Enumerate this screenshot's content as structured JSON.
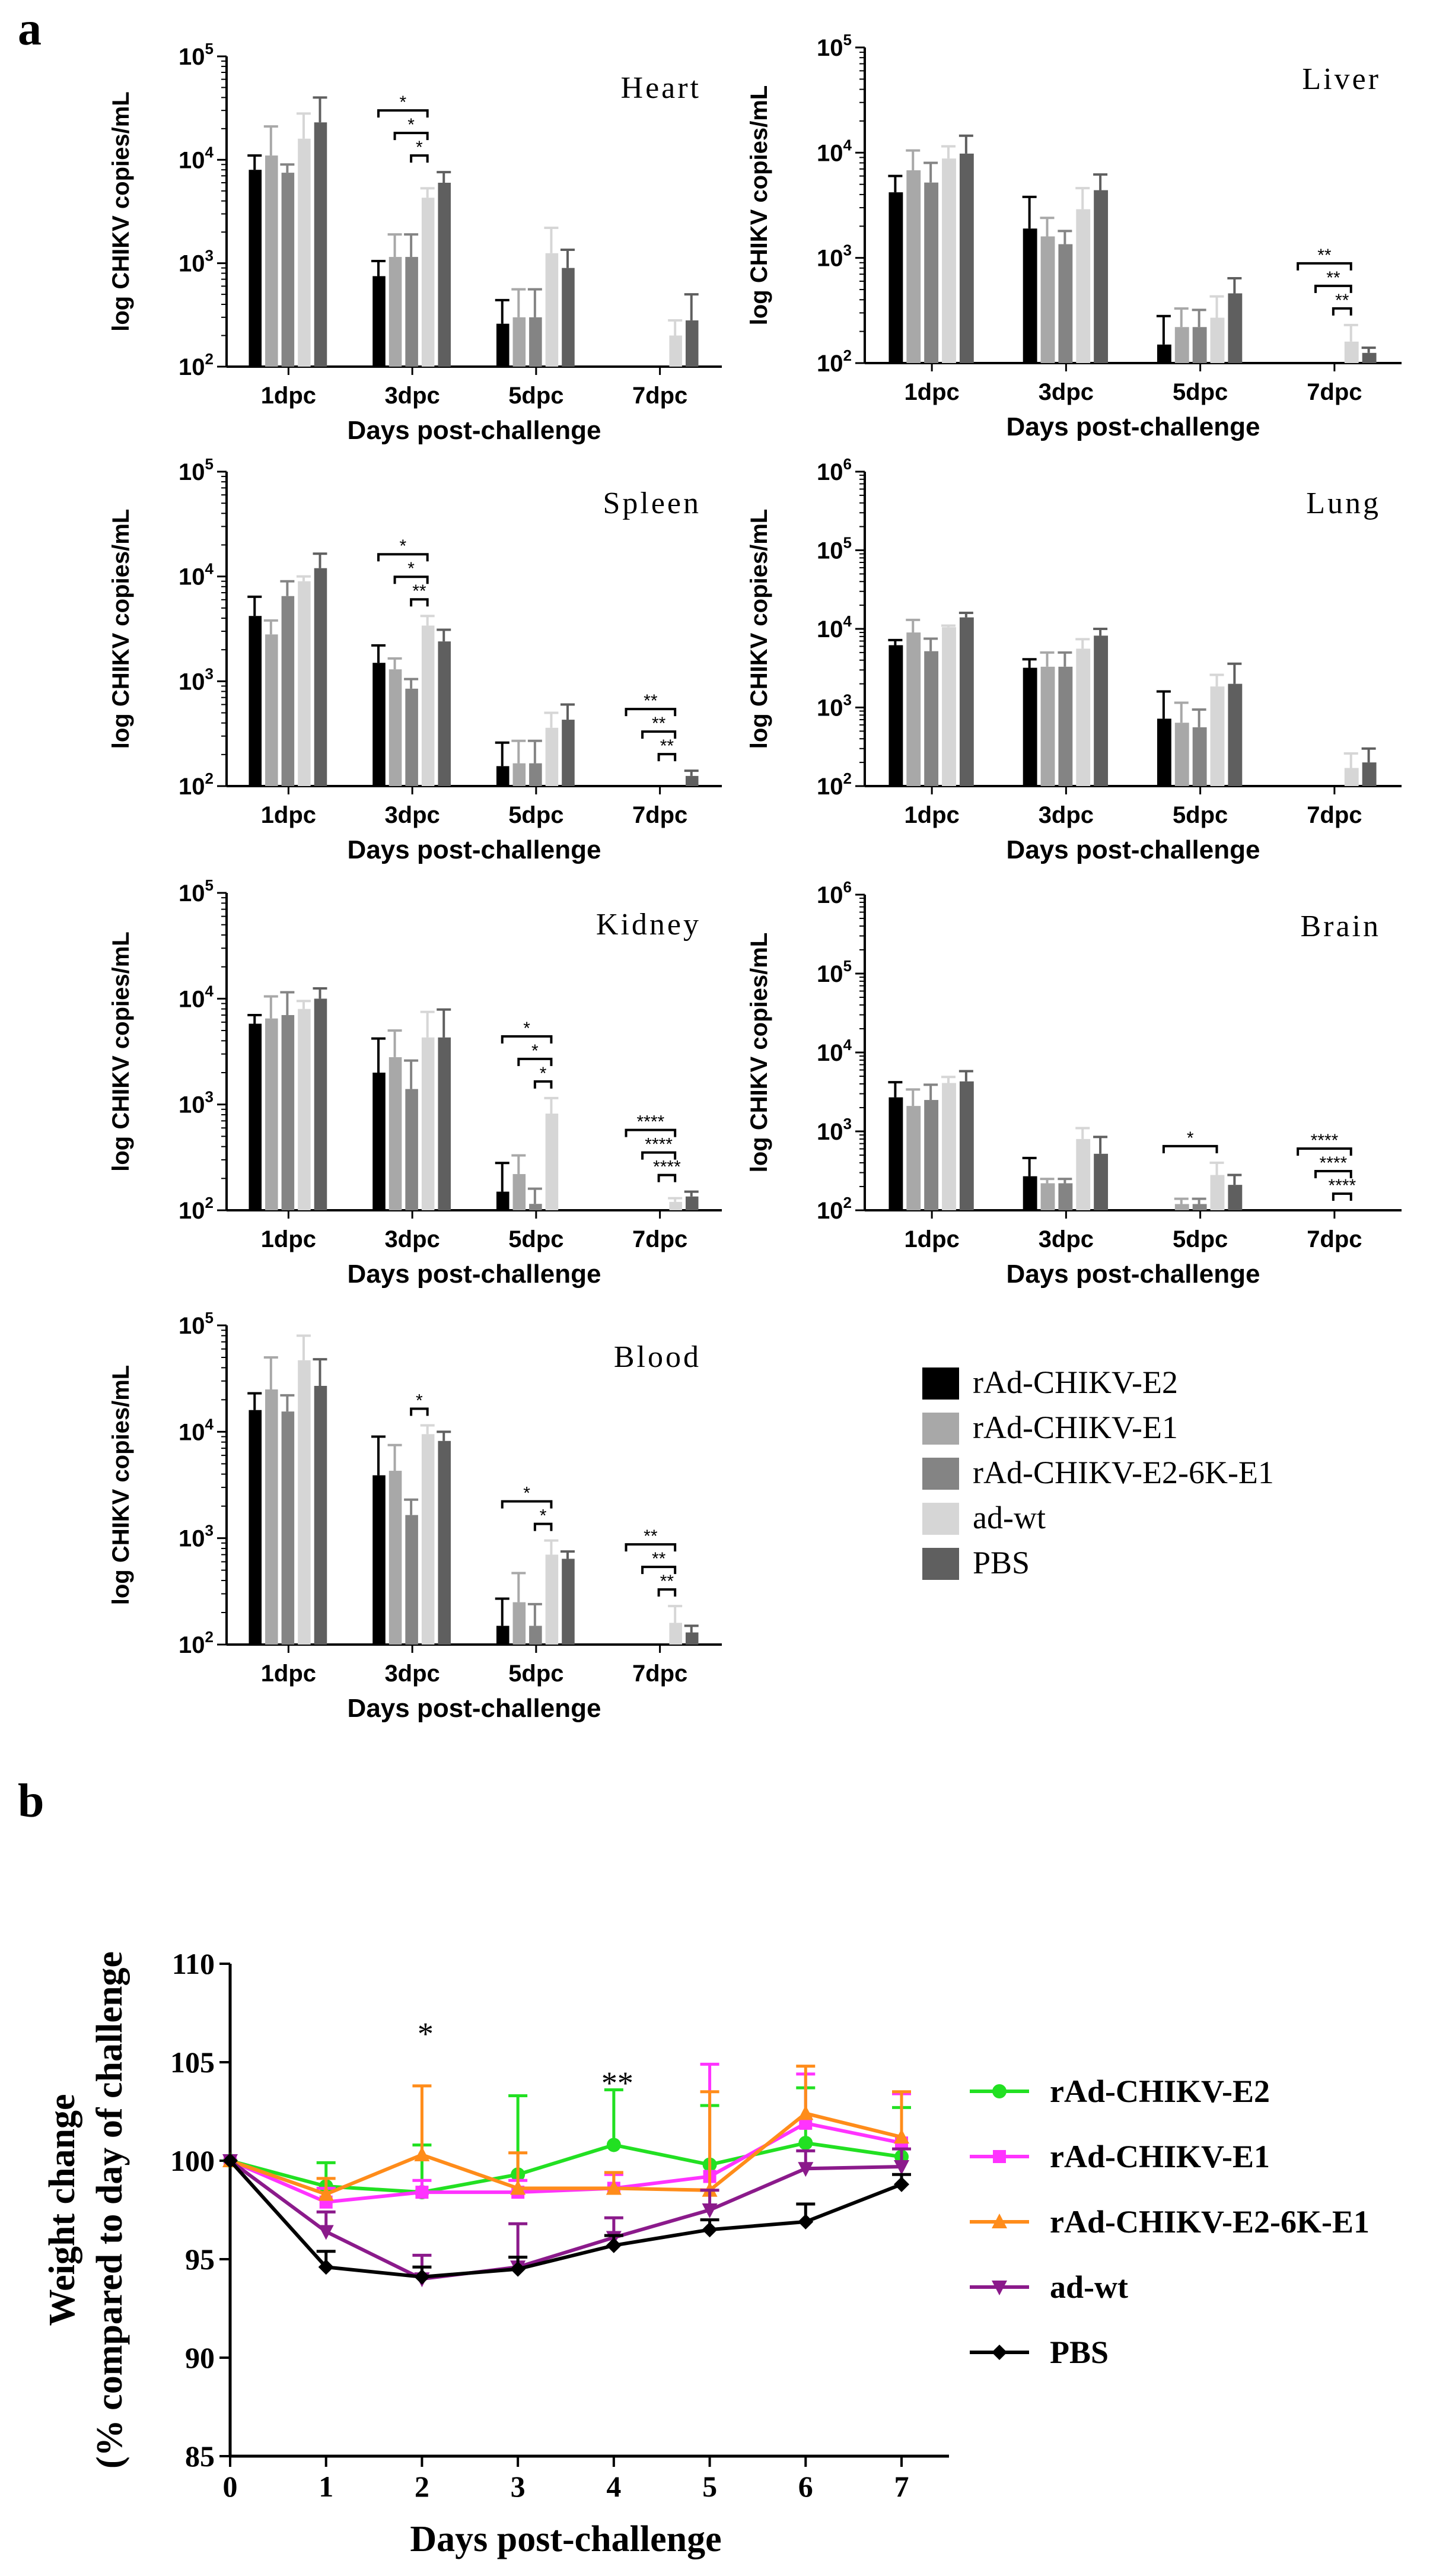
{
  "panel_labels": {
    "a": "a",
    "b": "b"
  },
  "legend_bars": [
    {
      "name": "rAd-CHIKV-E2",
      "color": "#000000"
    },
    {
      "name": "rAd-CHIKV-E1",
      "color": "#a8a8a8"
    },
    {
      "name": "rAd-CHIKV-E2-6K-E1",
      "color": "#848484"
    },
    {
      "name": "ad-wt",
      "color": "#d6d6d6"
    },
    {
      "name": "PBS",
      "color": "#5f5f5f"
    }
  ],
  "chart_data": [
    {
      "type": "bar",
      "title": "Heart",
      "xlabel": "Days post-challenge",
      "ylabel": "log CHIKV copies/mL",
      "yscale": "log",
      "ylim": [
        100,
        100000
      ],
      "ytick_exps": [
        2,
        3,
        4,
        5
      ],
      "categories": [
        "1dpc",
        "3dpc",
        "5dpc",
        "7dpc"
      ],
      "series": [
        {
          "name": "rAd-CHIKV-E2",
          "values": [
            8000,
            750,
            260,
            null
          ],
          "errors": [
            11000,
            1050,
            440,
            null
          ]
        },
        {
          "name": "rAd-CHIKV-E1",
          "values": [
            11000,
            1150,
            300,
            null
          ],
          "errors": [
            21000,
            1900,
            560,
            null
          ]
        },
        {
          "name": "rAd-CHIKV-E2-6K-E1",
          "values": [
            7500,
            1150,
            300,
            null
          ],
          "errors": [
            9000,
            1900,
            560,
            null
          ]
        },
        {
          "name": "ad-wt",
          "values": [
            16000,
            4300,
            1250,
            200
          ],
          "errors": [
            28000,
            5300,
            2200,
            280
          ]
        },
        {
          "name": "PBS",
          "values": [
            23000,
            6000,
            900,
            280
          ],
          "errors": [
            40000,
            7600,
            1350,
            500
          ]
        }
      ],
      "significance": [
        {
          "from_series": 0,
          "to_series": 3,
          "category": 1,
          "label": "*"
        },
        {
          "from_series": 1,
          "to_series": 3,
          "category": 1,
          "label": "*"
        },
        {
          "from_series": 2,
          "to_series": 3,
          "category": 1,
          "label": "*"
        }
      ]
    },
    {
      "type": "bar",
      "title": "Liver",
      "xlabel": "Days post-challenge",
      "ylabel": "log CHIKV copies/mL",
      "yscale": "log",
      "ylim": [
        100,
        100000
      ],
      "ytick_exps": [
        2,
        3,
        4,
        5
      ],
      "categories": [
        "1dpc",
        "3dpc",
        "5dpc",
        "7dpc"
      ],
      "series": [
        {
          "name": "rAd-CHIKV-E2",
          "values": [
            4200,
            1900,
            150,
            null
          ],
          "errors": [
            6000,
            3800,
            280,
            null
          ]
        },
        {
          "name": "rAd-CHIKV-E1",
          "values": [
            6800,
            1600,
            220,
            null
          ],
          "errors": [
            10500,
            2400,
            330,
            null
          ]
        },
        {
          "name": "rAd-CHIKV-E2-6K-E1",
          "values": [
            5200,
            1350,
            220,
            null
          ],
          "errors": [
            8000,
            1800,
            320,
            null
          ]
        },
        {
          "name": "ad-wt",
          "values": [
            8800,
            2900,
            270,
            160
          ],
          "errors": [
            11500,
            4600,
            430,
            230
          ]
        },
        {
          "name": "PBS",
          "values": [
            9800,
            4400,
            460,
            125
          ],
          "errors": [
            14500,
            6200,
            640,
            140
          ]
        }
      ],
      "significance": [
        {
          "from_series": 0,
          "to_series": 3,
          "category": 3,
          "label": "**"
        },
        {
          "from_series": 1,
          "to_series": 3,
          "category": 3,
          "label": "**"
        },
        {
          "from_series": 2,
          "to_series": 3,
          "category": 3,
          "label": "**"
        }
      ]
    },
    {
      "type": "bar",
      "title": "Spleen",
      "xlabel": "Days post-challenge",
      "ylabel": "log CHIKV copies/mL",
      "yscale": "log",
      "ylim": [
        100,
        100000
      ],
      "ytick_exps": [
        2,
        3,
        4,
        5
      ],
      "categories": [
        "1dpc",
        "3dpc",
        "5dpc",
        "7dpc"
      ],
      "series": [
        {
          "name": "rAd-CHIKV-E2",
          "values": [
            4200,
            1500,
            155,
            null
          ],
          "errors": [
            6400,
            2200,
            260,
            null
          ]
        },
        {
          "name": "rAd-CHIKV-E1",
          "values": [
            2800,
            1300,
            165,
            null
          ],
          "errors": [
            3800,
            1650,
            270,
            null
          ]
        },
        {
          "name": "rAd-CHIKV-E2-6K-E1",
          "values": [
            6500,
            850,
            165,
            null
          ],
          "errors": [
            9000,
            1050,
            270,
            null
          ]
        },
        {
          "name": "ad-wt",
          "values": [
            9000,
            3400,
            360,
            null
          ],
          "errors": [
            10000,
            4200,
            500,
            null
          ]
        },
        {
          "name": "PBS",
          "values": [
            12000,
            2400,
            430,
            125
          ],
          "errors": [
            16500,
            3100,
            600,
            140
          ]
        }
      ],
      "significance": [
        {
          "from_series": 0,
          "to_series": 3,
          "category": 1,
          "label": "*"
        },
        {
          "from_series": 1,
          "to_series": 3,
          "category": 1,
          "label": "*"
        },
        {
          "from_series": 2,
          "to_series": 3,
          "category": 1,
          "label": "**"
        },
        {
          "from_series": 0,
          "to_series": 3,
          "category": 3,
          "label": "**"
        },
        {
          "from_series": 1,
          "to_series": 3,
          "category": 3,
          "label": "**"
        },
        {
          "from_series": 2,
          "to_series": 3,
          "category": 3,
          "label": "**"
        }
      ]
    },
    {
      "type": "bar",
      "title": "Lung",
      "xlabel": "Days post-challenge",
      "ylabel": "log CHIKV copies/mL",
      "yscale": "log",
      "ylim": [
        100,
        1000000
      ],
      "ytick_exps": [
        2,
        3,
        4,
        5,
        6
      ],
      "categories": [
        "1dpc",
        "3dpc",
        "5dpc",
        "7dpc"
      ],
      "series": [
        {
          "name": "rAd-CHIKV-E2",
          "values": [
            6200,
            3200,
            720,
            null
          ],
          "errors": [
            7200,
            4100,
            1600,
            null
          ]
        },
        {
          "name": "rAd-CHIKV-E1",
          "values": [
            9000,
            3300,
            640,
            null
          ],
          "errors": [
            13000,
            5000,
            1150,
            null
          ]
        },
        {
          "name": "rAd-CHIKV-E2-6K-E1",
          "values": [
            5200,
            3300,
            560,
            null
          ],
          "errors": [
            7500,
            5000,
            940,
            null
          ]
        },
        {
          "name": "ad-wt",
          "values": [
            10500,
            5600,
            1850,
            170
          ],
          "errors": [
            11000,
            7400,
            2600,
            260
          ]
        },
        {
          "name": "PBS",
          "values": [
            14000,
            8200,
            2000,
            200
          ],
          "errors": [
            16000,
            10000,
            3600,
            300
          ]
        }
      ],
      "significance": []
    },
    {
      "type": "bar",
      "title": "Kidney",
      "xlabel": "Days post-challenge",
      "ylabel": "log CHIKV copies/mL",
      "yscale": "log",
      "ylim": [
        100,
        100000
      ],
      "ytick_exps": [
        2,
        3,
        4,
        5
      ],
      "categories": [
        "1dpc",
        "3dpc",
        "5dpc",
        "7dpc"
      ],
      "series": [
        {
          "name": "rAd-CHIKV-E2",
          "values": [
            5800,
            2000,
            150,
            null
          ],
          "errors": [
            7000,
            4200,
            280,
            null
          ]
        },
        {
          "name": "rAd-CHIKV-E1",
          "values": [
            6500,
            2800,
            220,
            null
          ],
          "errors": [
            10500,
            5000,
            330,
            null
          ]
        },
        {
          "name": "rAd-CHIKV-E2-6K-E1",
          "values": [
            7000,
            1400,
            115,
            null
          ],
          "errors": [
            11500,
            2600,
            160,
            null
          ]
        },
        {
          "name": "ad-wt",
          "values": [
            8000,
            4300,
            820,
            120
          ],
          "errors": [
            9500,
            7500,
            1150,
            130
          ]
        },
        {
          "name": "PBS",
          "values": [
            10000,
            4300,
            null,
            135
          ],
          "errors": [
            12500,
            7900,
            null,
            150
          ]
        }
      ],
      "significance": [
        {
          "from_series": 0,
          "to_series": 3,
          "category": 2,
          "label": "*"
        },
        {
          "from_series": 1,
          "to_series": 3,
          "category": 2,
          "label": "*"
        },
        {
          "from_series": 2,
          "to_series": 3,
          "category": 2,
          "label": "*"
        },
        {
          "from_series": 0,
          "to_series": 3,
          "category": 3,
          "label": "****"
        },
        {
          "from_series": 1,
          "to_series": 3,
          "category": 3,
          "label": "****"
        },
        {
          "from_series": 2,
          "to_series": 3,
          "category": 3,
          "label": "****"
        }
      ]
    },
    {
      "type": "bar",
      "title": "Brain",
      "xlabel": "Days post-challenge",
      "ylabel": "log CHIKV copies/mL",
      "yscale": "log",
      "ylim": [
        100,
        1000000
      ],
      "ytick_exps": [
        2,
        3,
        4,
        5,
        6
      ],
      "categories": [
        "1dpc",
        "3dpc",
        "5dpc",
        "7dpc"
      ],
      "series": [
        {
          "name": "rAd-CHIKV-E2",
          "values": [
            2700,
            270,
            null,
            null
          ],
          "errors": [
            4200,
            460,
            null,
            null
          ]
        },
        {
          "name": "rAd-CHIKV-E1",
          "values": [
            2100,
            220,
            120,
            null
          ],
          "errors": [
            3400,
            250,
            140,
            null
          ]
        },
        {
          "name": "rAd-CHIKV-E2-6K-E1",
          "values": [
            2500,
            220,
            120,
            null
          ],
          "errors": [
            3900,
            250,
            140,
            null
          ]
        },
        {
          "name": "ad-wt",
          "values": [
            4100,
            800,
            280,
            null
          ],
          "errors": [
            4900,
            1100,
            400,
            null
          ]
        },
        {
          "name": "PBS",
          "values": [
            4300,
            520,
            210,
            null
          ],
          "errors": [
            5800,
            850,
            280,
            null
          ]
        }
      ],
      "significance": [
        {
          "from_series": 0,
          "to_series": 3,
          "category": 2,
          "label": "*"
        },
        {
          "from_series": 0,
          "to_series": 3,
          "category": 3,
          "label": "****"
        },
        {
          "from_series": 1,
          "to_series": 3,
          "category": 3,
          "label": "****"
        },
        {
          "from_series": 2,
          "to_series": 3,
          "category": 3,
          "label": "****"
        }
      ]
    },
    {
      "type": "bar",
      "title": "Blood",
      "xlabel": "Days post-challenge",
      "ylabel": "log CHIKV copies/mL",
      "yscale": "log",
      "ylim": [
        100,
        100000
      ],
      "ytick_exps": [
        2,
        3,
        4,
        5
      ],
      "categories": [
        "1dpc",
        "3dpc",
        "5dpc",
        "7dpc"
      ],
      "series": [
        {
          "name": "rAd-CHIKV-E2",
          "values": [
            16000,
            3900,
            150,
            null
          ],
          "errors": [
            23000,
            9000,
            270,
            null
          ]
        },
        {
          "name": "rAd-CHIKV-E1",
          "values": [
            25000,
            4300,
            250,
            null
          ],
          "errors": [
            50000,
            7500,
            470,
            null
          ]
        },
        {
          "name": "rAd-CHIKV-E2-6K-E1",
          "values": [
            15500,
            1650,
            150,
            null
          ],
          "errors": [
            22000,
            2300,
            240,
            null
          ]
        },
        {
          "name": "ad-wt",
          "values": [
            47000,
            9500,
            700,
            160
          ],
          "errors": [
            80000,
            11500,
            950,
            230
          ]
        },
        {
          "name": "PBS",
          "values": [
            27000,
            8200,
            640,
            130
          ],
          "errors": [
            48000,
            10000,
            750,
            150
          ]
        }
      ],
      "significance": [
        {
          "from_series": 2,
          "to_series": 3,
          "category": 1,
          "label": "*"
        },
        {
          "from_series": 0,
          "to_series": 3,
          "category": 2,
          "label": "*"
        },
        {
          "from_series": 2,
          "to_series": 3,
          "category": 2,
          "label": "*"
        },
        {
          "from_series": 0,
          "to_series": 3,
          "category": 3,
          "label": "**"
        },
        {
          "from_series": 1,
          "to_series": 3,
          "category": 3,
          "label": "**"
        },
        {
          "from_series": 2,
          "to_series": 3,
          "category": 3,
          "label": "**"
        }
      ]
    },
    {
      "type": "line",
      "xlabel": "Days post-challenge",
      "ylabel_line1": "Weight change",
      "ylabel_line2": "(% compared to day of challenge",
      "x": [
        0,
        1,
        2,
        3,
        4,
        5,
        6,
        7
      ],
      "xlim": [
        0,
        7
      ],
      "ylim": [
        85,
        110
      ],
      "yticks": [
        85,
        90,
        95,
        100,
        105,
        110
      ],
      "series": [
        {
          "name": "rAd-CHIKV-E2",
          "color": "#22e022",
          "marker": "circle",
          "values": [
            100,
            98.7,
            98.4,
            99.3,
            100.8,
            99.8,
            100.9,
            100.2
          ],
          "errors": [
            0,
            1.2,
            2.4,
            4.0,
            2.8,
            3.0,
            2.8,
            2.5
          ]
        },
        {
          "name": "rAd-CHIKV-E1",
          "color": "#ff33ff",
          "marker": "square",
          "values": [
            100,
            97.9,
            98.4,
            98.4,
            98.6,
            99.2,
            101.9,
            100.9
          ],
          "errors": [
            0,
            0.7,
            0.6,
            0.6,
            0.7,
            5.7,
            2.5,
            2.5
          ]
        },
        {
          "name": "rAd-CHIKV-E2-6K-E1",
          "color": "#ff8c1a",
          "marker": "triangle-up",
          "values": [
            100,
            98.3,
            100.3,
            98.6,
            98.6,
            98.5,
            102.4,
            101.2
          ],
          "errors": [
            0,
            0.8,
            3.5,
            1.8,
            0.8,
            5.0,
            2.4,
            2.3
          ]
        },
        {
          "name": "ad-wt",
          "color": "#8b1a8b",
          "marker": "triangle-down",
          "values": [
            100,
            96.4,
            94.0,
            94.6,
            96.1,
            97.5,
            99.6,
            99.7
          ],
          "errors": [
            0,
            1.0,
            1.2,
            2.2,
            1.0,
            1.0,
            0.9,
            0.9
          ]
        },
        {
          "name": "PBS",
          "color": "#000000",
          "marker": "diamond",
          "values": [
            100,
            94.6,
            94.1,
            94.5,
            95.7,
            96.5,
            96.9,
            98.8
          ],
          "errors": [
            0,
            0.8,
            0.5,
            0.6,
            0.5,
            0.5,
            0.9,
            0.5
          ]
        }
      ],
      "annotations": [
        {
          "x": 2,
          "y": 106.5,
          "label": "*"
        },
        {
          "x": 4,
          "y": 104.0,
          "label": "**"
        }
      ]
    }
  ]
}
